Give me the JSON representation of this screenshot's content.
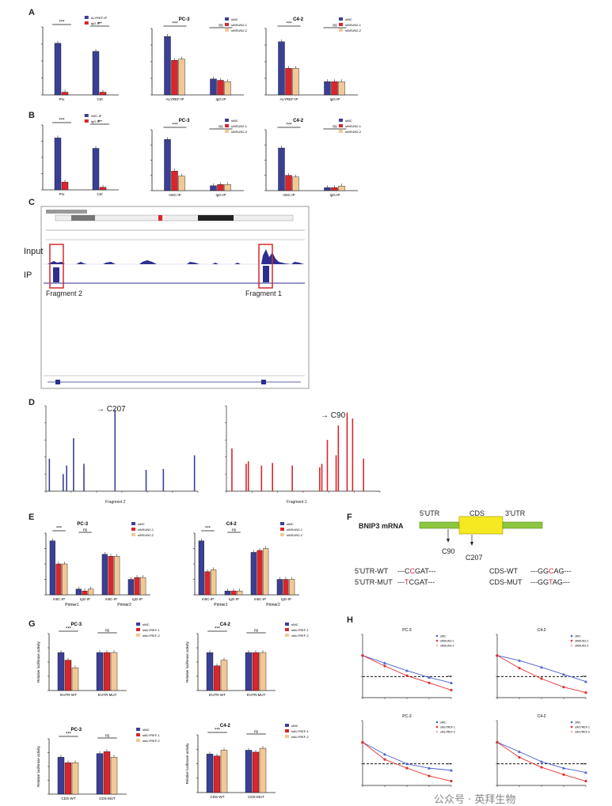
{
  "panels": {
    "A": "A",
    "B": "B",
    "C": "C",
    "D": "D",
    "E": "E",
    "F": "F",
    "G": "G",
    "H": "H"
  },
  "colors": {
    "blue": "#3a3f95",
    "red": "#d8262c",
    "tan": "#f2c895",
    "lineblue": "#4a5fd0",
    "linered": "#e53030",
    "ipblue": "#2d2f8f",
    "redbox": "#d8262c",
    "yellow": "#f5ea21",
    "green": "#8cc63f"
  },
  "sig": {
    "three": "***",
    "ns": "ns"
  },
  "panelC": {
    "input_label": "Input",
    "ip_label": "IP",
    "fragment2": "Fragment 2",
    "fragment1": "Fragment 1"
  },
  "panelD": {
    "left_marker": "C207",
    "right_marker": "C90",
    "left_xlabel": "Fragment 2",
    "right_xlabel": "Fragment 1"
  },
  "panelF": {
    "gene": "BNIP3 mRNA",
    "utr5": "5'UTR",
    "cds": "CDS",
    "utr3": "3'UTR",
    "c90": "C90",
    "c207": "C207",
    "seqs": [
      {
        "label": "5'UTR-WT",
        "pre": "---C",
        "mut": "C",
        "post": "GAT---"
      },
      {
        "label": "5'UTR-MUT",
        "pre": "---",
        "mut": "T",
        "post": "CGAT---"
      },
      {
        "label": "CDS-WT",
        "pre": "---GG",
        "mut": "C",
        "post": "AG---"
      },
      {
        "label": "CDS-MUT",
        "pre": "---GG",
        "mut": "T",
        "post": "AG---"
      }
    ]
  },
  "charts": {
    "A1": {
      "legend": [
        "ALYREF-IP",
        "IgG-IP"
      ],
      "categories": [
        "Prx",
        "Ctrl"
      ]
    },
    "A2": {
      "title": "PC-3",
      "legend": [
        "siNC",
        "siNSUN2-1",
        "siNSUN2-2"
      ],
      "categories": [
        "ALYREF-IP",
        "IgG-IP"
      ]
    },
    "A3": {
      "title": "C4-2",
      "legend": [
        "siNC",
        "siNSUN2-1",
        "siNSUN2-2"
      ],
      "categories": [
        "ALYREF-IP",
        "IgG-IP"
      ]
    },
    "B1": {
      "legend": [
        "m5C-IP",
        "IgG-IP"
      ],
      "categories": [
        "Prx",
        "Ctrl"
      ]
    },
    "B2": {
      "title": "PC-3",
      "legend": [
        "siNC",
        "siNSUN2-1",
        "siNSUN2-2"
      ],
      "categories": [
        "m5C-IP",
        "IgG-IP"
      ]
    },
    "B3": {
      "title": "C4-2",
      "legend": [
        "siNC",
        "siNSUN2-1",
        "siNSUN2-2"
      ],
      "categories": [
        "m5C-IP",
        "IgG-IP"
      ]
    },
    "E1": {
      "title": "PC-3",
      "legend": [
        "siNC",
        "siNSUN2-1",
        "siNSUN2-2"
      ],
      "groups": [
        "Primer1",
        "Primer2"
      ],
      "categories": [
        "m5C-IP",
        "IgG-IP",
        "m5C-IP",
        "IgG-IP"
      ]
    },
    "E2": {
      "title": "C4-2",
      "legend": [
        "siNC",
        "siNSUN2-1",
        "siNSUN2-2"
      ],
      "groups": [
        "Primer1",
        "Primer2"
      ],
      "categories": [
        "m5C-IP",
        "IgG-IP",
        "m5C-IP",
        "IgG-IP"
      ]
    },
    "G1": {
      "title": "PC-3",
      "ylabel": "Relative luciferase activity",
      "legend": [
        "siNC",
        "siALYREF-1",
        "siALYREF-2"
      ],
      "categories": [
        "5'UTR-WT",
        "5'UTR-MUT"
      ]
    },
    "G2": {
      "title": "C4-2",
      "ylabel": "Relative luciferase activity",
      "legend": [
        "siNC",
        "siALYREF-1",
        "siALYREF-2"
      ],
      "categories": [
        "5'UTR-WT",
        "5'UTR-MUT"
      ]
    },
    "G3": {
      "title": "PC-3",
      "ylabel": "Relative luciferase activity",
      "legend": [
        "siNC",
        "siALYREF-1",
        "siALYREF-2"
      ],
      "categories": [
        "CDS-WT",
        "CDS-MUT"
      ]
    },
    "G4": {
      "title": "C4-2",
      "ylabel": "Relative luciferase activity",
      "legend": [
        "siNC",
        "siALYREF-1",
        "siALYREF-2"
      ],
      "categories": [
        "CDS-WT",
        "CDS-MUT"
      ]
    },
    "H1": {
      "title": "PC-3",
      "legend": [
        "siNC",
        "siNSUN2-1",
        "siNSUN2-2"
      ]
    },
    "H2": {
      "title": "C4-2",
      "legend": [
        "siNC",
        "siNSUN2-1",
        "siNSUN2-2"
      ]
    },
    "H3": {
      "title": "PC-3",
      "legend": [
        "siNC",
        "siALYREF-1",
        "siALYREF-2"
      ]
    },
    "H4": {
      "title": "C4-2",
      "legend": [
        "siNC",
        "siALYREF-1",
        "siALYREF-2"
      ]
    }
  },
  "chart_data": [
    {
      "id": "A1",
      "type": "bar",
      "categories": [
        "Prx",
        "Ctrl"
      ],
      "series": [
        {
          "name": "ALYREF-IP",
          "values": [
            19,
            16
          ]
        },
        {
          "name": "IgG-IP",
          "values": [
            1,
            1
          ]
        }
      ],
      "ylim": [
        0,
        25
      ]
    },
    {
      "id": "A2",
      "type": "bar",
      "title": "PC-3",
      "categories": [
        "ALYREF-IP",
        "IgG-IP"
      ],
      "series": [
        {
          "name": "siNC",
          "values": [
            22,
            6
          ]
        },
        {
          "name": "siNSUN2-1",
          "values": [
            13,
            5.5
          ]
        },
        {
          "name": "siNSUN2-2",
          "values": [
            13.5,
            5
          ]
        }
      ],
      "ylim": [
        0,
        25
      ]
    },
    {
      "id": "A3",
      "type": "bar",
      "title": "C4-2",
      "categories": [
        "ALYREF-IP",
        "IgG-IP"
      ],
      "series": [
        {
          "name": "siNC",
          "values": [
            20,
            5
          ]
        },
        {
          "name": "siNSUN2-1",
          "values": [
            10,
            5
          ]
        },
        {
          "name": "siNSUN2-2",
          "values": [
            10,
            5
          ]
        }
      ],
      "ylim": [
        0,
        25
      ]
    },
    {
      "id": "B1",
      "type": "bar",
      "categories": [
        "Prx",
        "Ctrl"
      ],
      "series": [
        {
          "name": "m5C-IP",
          "values": [
            20,
            16
          ]
        },
        {
          "name": "IgG-IP",
          "values": [
            3,
            1
          ]
        }
      ],
      "ylim": [
        0,
        25
      ]
    },
    {
      "id": "B2",
      "type": "bar",
      "title": "PC-3",
      "categories": [
        "m5C-IP",
        "IgG-IP"
      ],
      "series": [
        {
          "name": "siNC",
          "values": [
            21,
            2
          ]
        },
        {
          "name": "siNSUN2-1",
          "values": [
            8,
            2.5
          ]
        },
        {
          "name": "siNSUN2-2",
          "values": [
            6,
            2.5
          ]
        }
      ],
      "ylim": [
        0,
        25
      ]
    },
    {
      "id": "B3",
      "type": "bar",
      "title": "C4-2",
      "categories": [
        "m5C-IP",
        "IgG-IP"
      ],
      "series": [
        {
          "name": "siNC",
          "values": [
            14,
            1
          ]
        },
        {
          "name": "siNSUN2-1",
          "values": [
            5,
            1
          ]
        },
        {
          "name": "siNSUN2-2",
          "values": [
            4.5,
            1.5
          ]
        }
      ],
      "ylim": [
        0,
        20
      ]
    },
    {
      "id": "D-left",
      "type": "bar",
      "series": [
        {
          "name": "Fragment 2",
          "x": [
            5,
            25,
            30,
            40,
            55,
            100,
            145,
            170,
            215
          ],
          "values": [
            0.38,
            0.2,
            0.3,
            0.62,
            0.32,
            0.95,
            0.25,
            0.26,
            0.42
          ]
        }
      ]
    },
    {
      "id": "D-right",
      "type": "bar",
      "series": [
        {
          "name": "Fragment 1",
          "x": [
            5,
            18,
            20,
            32,
            42,
            60,
            85,
            87,
            92,
            100,
            102,
            110,
            115,
            125
          ],
          "values": [
            0.5,
            0.32,
            0.35,
            0.3,
            0.33,
            0.3,
            0.28,
            0.32,
            0.6,
            0.42,
            0.77,
            0.92,
            0.85,
            0.38
          ]
        }
      ]
    },
    {
      "id": "E1",
      "type": "bar",
      "title": "PC-3",
      "categories": [
        "m5C-IP",
        "IgG-IP",
        "m5C-IP",
        "IgG-IP"
      ],
      "series": [
        {
          "name": "siNC",
          "values": [
            14,
            1.5,
            10.5,
            4
          ]
        },
        {
          "name": "siNSUN2-1",
          "values": [
            8,
            1,
            10,
            4.5
          ]
        },
        {
          "name": "siNSUN2-2",
          "values": [
            8,
            1.5,
            10,
            4.5
          ]
        }
      ],
      "ylim": [
        0,
        16
      ]
    },
    {
      "id": "E2",
      "type": "bar",
      "title": "C4-2",
      "categories": [
        "m5C-IP",
        "IgG-IP",
        "m5C-IP",
        "IgG-IP"
      ],
      "series": [
        {
          "name": "siNC",
          "values": [
            14,
            1,
            11,
            4
          ]
        },
        {
          "name": "siNSUN2-1",
          "values": [
            6,
            1,
            11.5,
            4
          ]
        },
        {
          "name": "siNSUN2-2",
          "values": [
            6.5,
            1,
            12,
            4
          ]
        }
      ],
      "ylim": [
        0,
        16
      ]
    },
    {
      "id": "G1",
      "type": "bar",
      "title": "PC-3",
      "ylabel": "Relative luciferase activity",
      "categories": [
        "5'UTR-WT",
        "5'UTR-MUT"
      ],
      "series": [
        {
          "name": "siNC",
          "values": [
            1.0,
            1.0
          ]
        },
        {
          "name": "siALYREF-1",
          "values": [
            0.8,
            1.0
          ]
        },
        {
          "name": "siALYREF-2",
          "values": [
            0.6,
            1.0
          ]
        }
      ],
      "ylim": [
        0,
        1.5
      ]
    },
    {
      "id": "G2",
      "type": "bar",
      "title": "C4-2",
      "ylabel": "Relative luciferase activity",
      "categories": [
        "5'UTR-WT",
        "5'UTR-MUT"
      ],
      "series": [
        {
          "name": "siNC",
          "values": [
            1.0,
            1.0
          ]
        },
        {
          "name": "siALYREF-1",
          "values": [
            0.65,
            1.0
          ]
        },
        {
          "name": "siALYREF-2",
          "values": [
            0.8,
            1.0
          ]
        }
      ],
      "ylim": [
        0,
        1.5
      ]
    },
    {
      "id": "G3",
      "type": "bar",
      "title": "PC-3",
      "ylabel": "Relative luciferase activity",
      "categories": [
        "CDS-WT",
        "CDS-MUT"
      ],
      "series": [
        {
          "name": "siNC",
          "values": [
            1.0,
            1.1
          ]
        },
        {
          "name": "siALYREF-1",
          "values": [
            0.85,
            1.15
          ]
        },
        {
          "name": "siALYREF-2",
          "values": [
            0.85,
            1.0
          ]
        }
      ],
      "ylim": [
        0,
        1.5
      ]
    },
    {
      "id": "G4",
      "type": "bar",
      "title": "C4-2",
      "ylabel": "Relative luciferase activity",
      "categories": [
        "CDS-WT",
        "CDS-MUT"
      ],
      "series": [
        {
          "name": "siNC",
          "values": [
            1.0,
            1.1
          ]
        },
        {
          "name": "siALYREF-1",
          "values": [
            0.95,
            1.05
          ]
        },
        {
          "name": "siALYREF-2",
          "values": [
            1.1,
            1.15
          ]
        }
      ],
      "ylim": [
        0,
        1.5
      ]
    },
    {
      "id": "H1",
      "type": "line",
      "title": "PC-3",
      "x": [
        0,
        2,
        4,
        6,
        8
      ],
      "series": [
        {
          "name": "siNC",
          "values": [
            1.0,
            0.82,
            0.64,
            0.48,
            0.35
          ]
        },
        {
          "name": "siNSUN2-1",
          "values": [
            1.0,
            0.75,
            0.52,
            0.35,
            0.18
          ]
        }
      ],
      "ylim": [
        0,
        1.5
      ]
    },
    {
      "id": "H2",
      "type": "line",
      "title": "C4-2",
      "x": [
        0,
        2,
        4,
        6,
        8
      ],
      "series": [
        {
          "name": "siNC",
          "values": [
            1.0,
            0.88,
            0.72,
            0.55,
            0.38
          ]
        },
        {
          "name": "siNSUN2-1",
          "values": [
            1.0,
            0.7,
            0.45,
            0.25,
            0.12
          ]
        }
      ],
      "ylim": [
        0,
        1.5
      ]
    },
    {
      "id": "H3",
      "type": "line",
      "title": "PC-3",
      "x": [
        0,
        2,
        4,
        6,
        8
      ],
      "series": [
        {
          "name": "siNC",
          "values": [
            1.0,
            0.72,
            0.5,
            0.4,
            0.35
          ]
        },
        {
          "name": "siALYREF-1",
          "values": [
            1.0,
            0.6,
            0.4,
            0.22,
            0.1
          ]
        }
      ],
      "ylim": [
        0,
        1.5
      ]
    },
    {
      "id": "H4",
      "type": "line",
      "title": "C4-2",
      "x": [
        0,
        2,
        4,
        6,
        8
      ],
      "series": [
        {
          "name": "siNC",
          "values": [
            1.0,
            0.78,
            0.55,
            0.4,
            0.3
          ]
        },
        {
          "name": "siALYREF-1",
          "values": [
            1.0,
            0.65,
            0.42,
            0.25,
            0.1
          ]
        }
      ],
      "ylim": [
        0,
        1.5
      ]
    }
  ],
  "watermark": "公众号 · 英拜生物"
}
